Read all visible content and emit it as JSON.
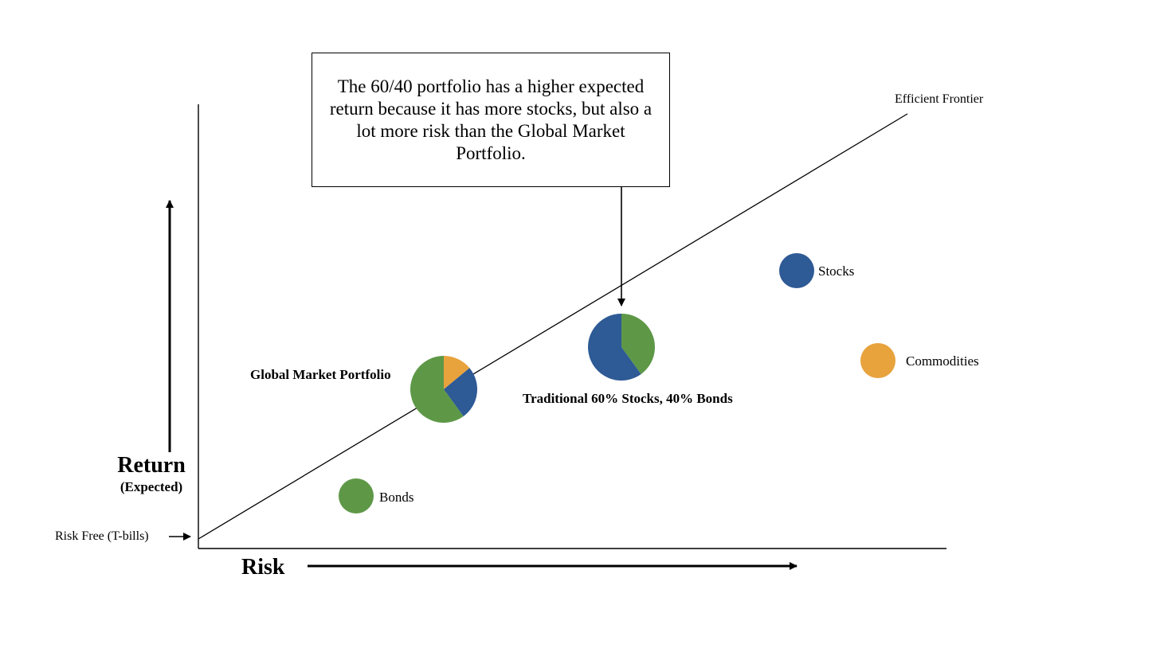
{
  "callout": {
    "text": "The 60/40 portfolio has a higher expected return because it has more stocks, but also a lot more risk than the Global Market Portfolio."
  },
  "axes": {
    "y_label": "Return",
    "y_sublabel": "(Expected)",
    "x_label": "Risk",
    "risk_free_label": "Risk Free (T-bills)"
  },
  "frontier": {
    "label": "Efficient Frontier"
  },
  "assets": {
    "stocks": {
      "label": "Stocks",
      "color": "#2e5a95"
    },
    "commodities": {
      "label": "Commodities",
      "color": "#e8a33d"
    },
    "bonds": {
      "label": "Bonds",
      "color": "#5e9847"
    }
  },
  "portfolios": {
    "global_market": {
      "label": "Global Market Portfolio",
      "slices": [
        {
          "asset": "commodities",
          "fraction": 0.14
        },
        {
          "asset": "stocks",
          "fraction": 0.26
        },
        {
          "asset": "bonds",
          "fraction": 0.6
        }
      ]
    },
    "traditional": {
      "label": "Traditional 60% Stocks, 40% Bonds",
      "slices": [
        {
          "asset": "bonds",
          "fraction": 0.4
        },
        {
          "asset": "stocks",
          "fraction": 0.6
        }
      ]
    }
  }
}
